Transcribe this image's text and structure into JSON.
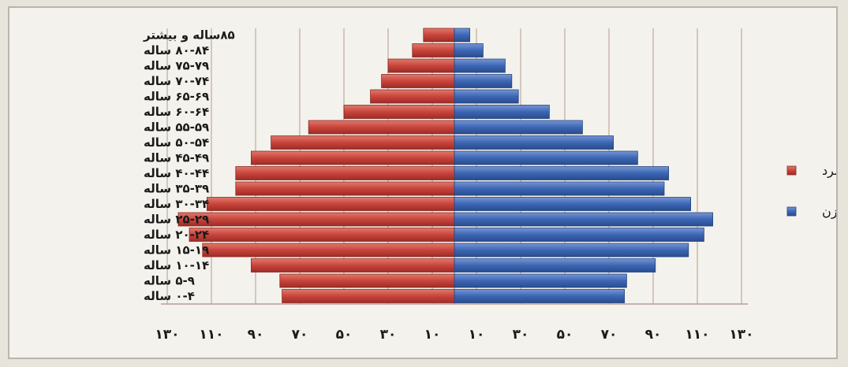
{
  "chart_data": {
    "type": "bar",
    "orientation": "horizontal-population-pyramid",
    "categories": [
      "۰-۴ ساله",
      "۵-۹ ساله",
      "۱۰-۱۴ ساله",
      "۱۵-۱۹ ساله",
      "۲۰-۲۴ ساله",
      "۲۵-۲۹ ساله",
      "۳۰-۳۴ ساله",
      "۳۵-۳۹ ساله",
      "۴۰-۴۴ ساله",
      "۴۵-۴۹ ساله",
      "۵۰-۵۴ ساله",
      "۵۵-۵۹ ساله",
      "۶۰-۶۴ ساله",
      "۶۵-۶۹ ساله",
      "۷۰-۷۴ ساله",
      "۷۵-۷۹ ساله",
      "۸۰-۸۴ ساله",
      "۸۵ساله و بیشتر"
    ],
    "series": [
      {
        "name": "مرد",
        "color": "#c8443c",
        "side": "left",
        "values": [
          78,
          79,
          92,
          114,
          120,
          125,
          112,
          99,
          99,
          92,
          83,
          66,
          50,
          38,
          33,
          30,
          19,
          14
        ]
      },
      {
        "name": "زن",
        "color": "#3c66b4",
        "side": "right",
        "values": [
          77,
          78,
          91,
          106,
          113,
          117,
          107,
          95,
          97,
          83,
          72,
          58,
          43,
          29,
          26,
          23,
          13,
          7
        ]
      }
    ],
    "x_tick_labels": [
      "۱۳۰",
      "۱۱۰",
      "۹۰",
      "۷۰",
      "۵۰",
      "۳۰",
      "۱۰",
      "۱۰",
      "۳۰",
      "۵۰",
      "۷۰",
      "۹۰",
      "۱۱۰",
      "۱۳۰"
    ],
    "x_tick_values": [
      -130,
      -110,
      -90,
      -70,
      -50,
      -30,
      -10,
      10,
      30,
      50,
      70,
      90,
      110,
      130
    ],
    "xlim": [
      -130,
      130
    ],
    "title": "",
    "xlabel": "",
    "ylabel": "",
    "grid": "vertical",
    "legend_position": "right"
  },
  "colors": {
    "frame_background": "#f4f2ec",
    "grid_line": "#c9b7ae",
    "axis_line": "#b49f96"
  }
}
